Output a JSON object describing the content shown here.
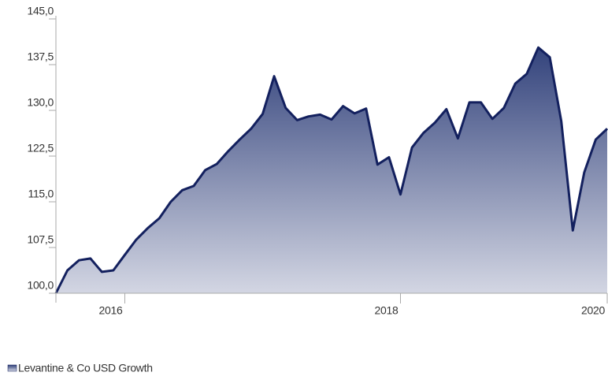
{
  "chart_data": {
    "type": "area",
    "categories": [
      null,
      null,
      null,
      null,
      null,
      null,
      "2016",
      null,
      null,
      null,
      null,
      null,
      null,
      null,
      null,
      null,
      null,
      null,
      null,
      null,
      null,
      null,
      null,
      null,
      null,
      null,
      null,
      null,
      null,
      null,
      "2018",
      null,
      null,
      null,
      null,
      null,
      null,
      null,
      null,
      null,
      null,
      null,
      null,
      null,
      null,
      null,
      null,
      null,
      "2020"
    ],
    "series": [
      {
        "name": "Levantine & Co USD Growth",
        "color": "#13205e",
        "values": [
          100.0,
          103.75,
          105.4,
          105.7,
          103.5,
          103.75,
          106.3,
          108.8,
          110.7,
          112.3,
          115.0,
          116.9,
          117.6,
          120.2,
          121.2,
          123.3,
          125.2,
          127.0,
          129.4,
          135.6,
          130.4,
          128.4,
          129.0,
          129.3,
          128.5,
          130.7,
          129.5,
          130.3,
          121.1,
          122.3,
          116.2,
          123.9,
          126.3,
          128.0,
          130.2,
          125.4,
          131.3,
          131.3,
          128.6,
          130.4,
          134.4,
          136.0,
          140.3,
          138.7,
          128.2,
          110.3,
          119.8,
          125.2,
          127.0
        ]
      }
    ],
    "ylim": [
      100,
      145
    ],
    "yticks": [
      {
        "value": 100,
        "label": "100,0"
      },
      {
        "value": 107.5,
        "label": "107,5"
      },
      {
        "value": 115,
        "label": "115,0"
      },
      {
        "value": 122.5,
        "label": "122,5"
      },
      {
        "value": 130,
        "label": "130,0"
      },
      {
        "value": 137.5,
        "label": "137,5"
      },
      {
        "value": 145,
        "label": "145,0"
      }
    ]
  }
}
